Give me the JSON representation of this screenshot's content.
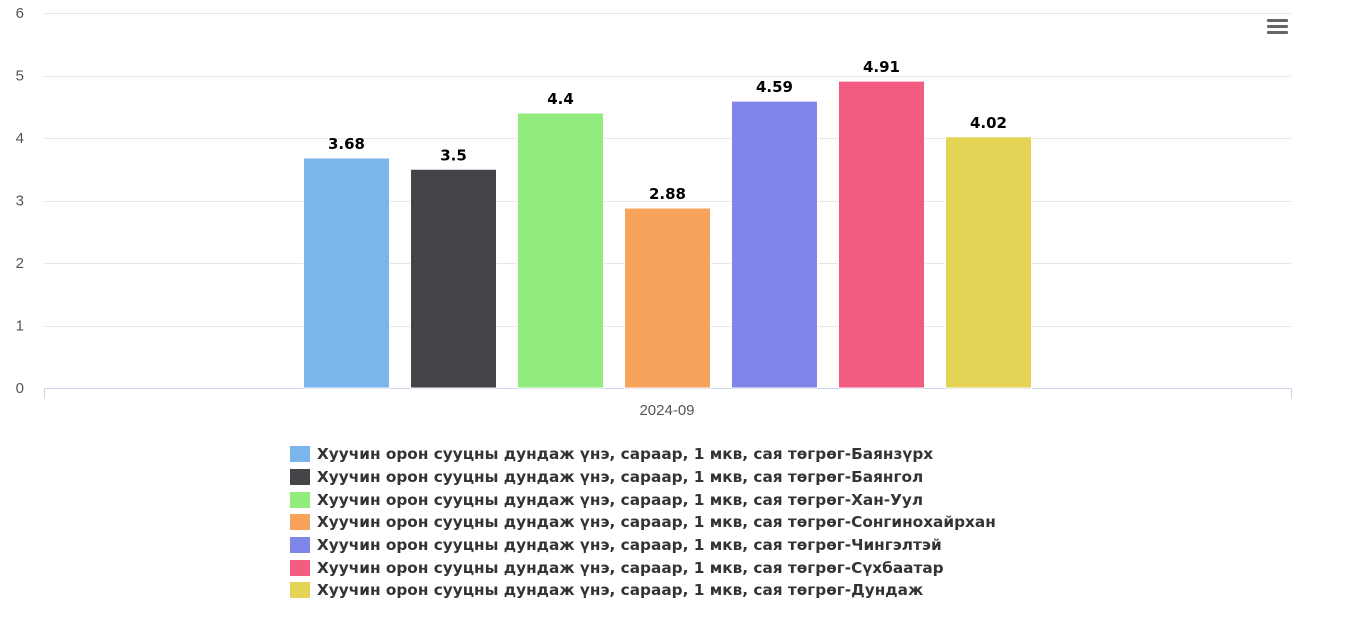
{
  "chart_data": {
    "type": "bar",
    "categories": [
      "2024-09"
    ],
    "ylim": [
      0,
      6
    ],
    "yticks": [
      0,
      1,
      2,
      3,
      4,
      5,
      6
    ],
    "title": "",
    "xlabel": "",
    "ylabel": "",
    "grid": true,
    "legend_position": "bottom",
    "series": [
      {
        "name": "Хуучин орон сууцны дундаж үнэ, сараар, 1 мкв, сая төгрөг-Баянзүрх",
        "values": [
          3.68
        ],
        "label": "3.68",
        "color": "#7cb5ec"
      },
      {
        "name": "Хуучин орон сууцны дундаж үнэ, сараар, 1 мкв, сая төгрөг-Баянгол",
        "values": [
          3.5
        ],
        "label": "3.5",
        "color": "#434348"
      },
      {
        "name": "Хуучин орон сууцны дундаж үнэ, сараар, 1 мкв, сая төгрөг-Хан-Уул",
        "values": [
          4.4
        ],
        "label": "4.4",
        "color": "#90ed7d"
      },
      {
        "name": "Хуучин орон сууцны дундаж үнэ, сараар, 1 мкв, сая төгрөг-Сонгинохайрхан",
        "values": [
          2.88
        ],
        "label": "2.88",
        "color": "#f7a35c"
      },
      {
        "name": "Хуучин орон сууцны дундаж үнэ, сараар, 1 мкв, сая төгрөг-Чингэлтэй",
        "values": [
          4.59
        ],
        "label": "4.59",
        "color": "#8085e9"
      },
      {
        "name": "Хуучин орон сууцны дундаж үнэ, сараар, 1 мкв, сая төгрөг-Сүхбаатар",
        "values": [
          4.91
        ],
        "label": "4.91",
        "color": "#f15c80"
      },
      {
        "name": "Хуучин орон сууцны дундаж үнэ, сараар, 1 мкв, сая төгрөг-Дундаж",
        "values": [
          4.02
        ],
        "label": "4.02",
        "color": "#e4d354"
      }
    ]
  },
  "toolbar": {
    "menu_icon": "hamburger-menu-icon"
  }
}
